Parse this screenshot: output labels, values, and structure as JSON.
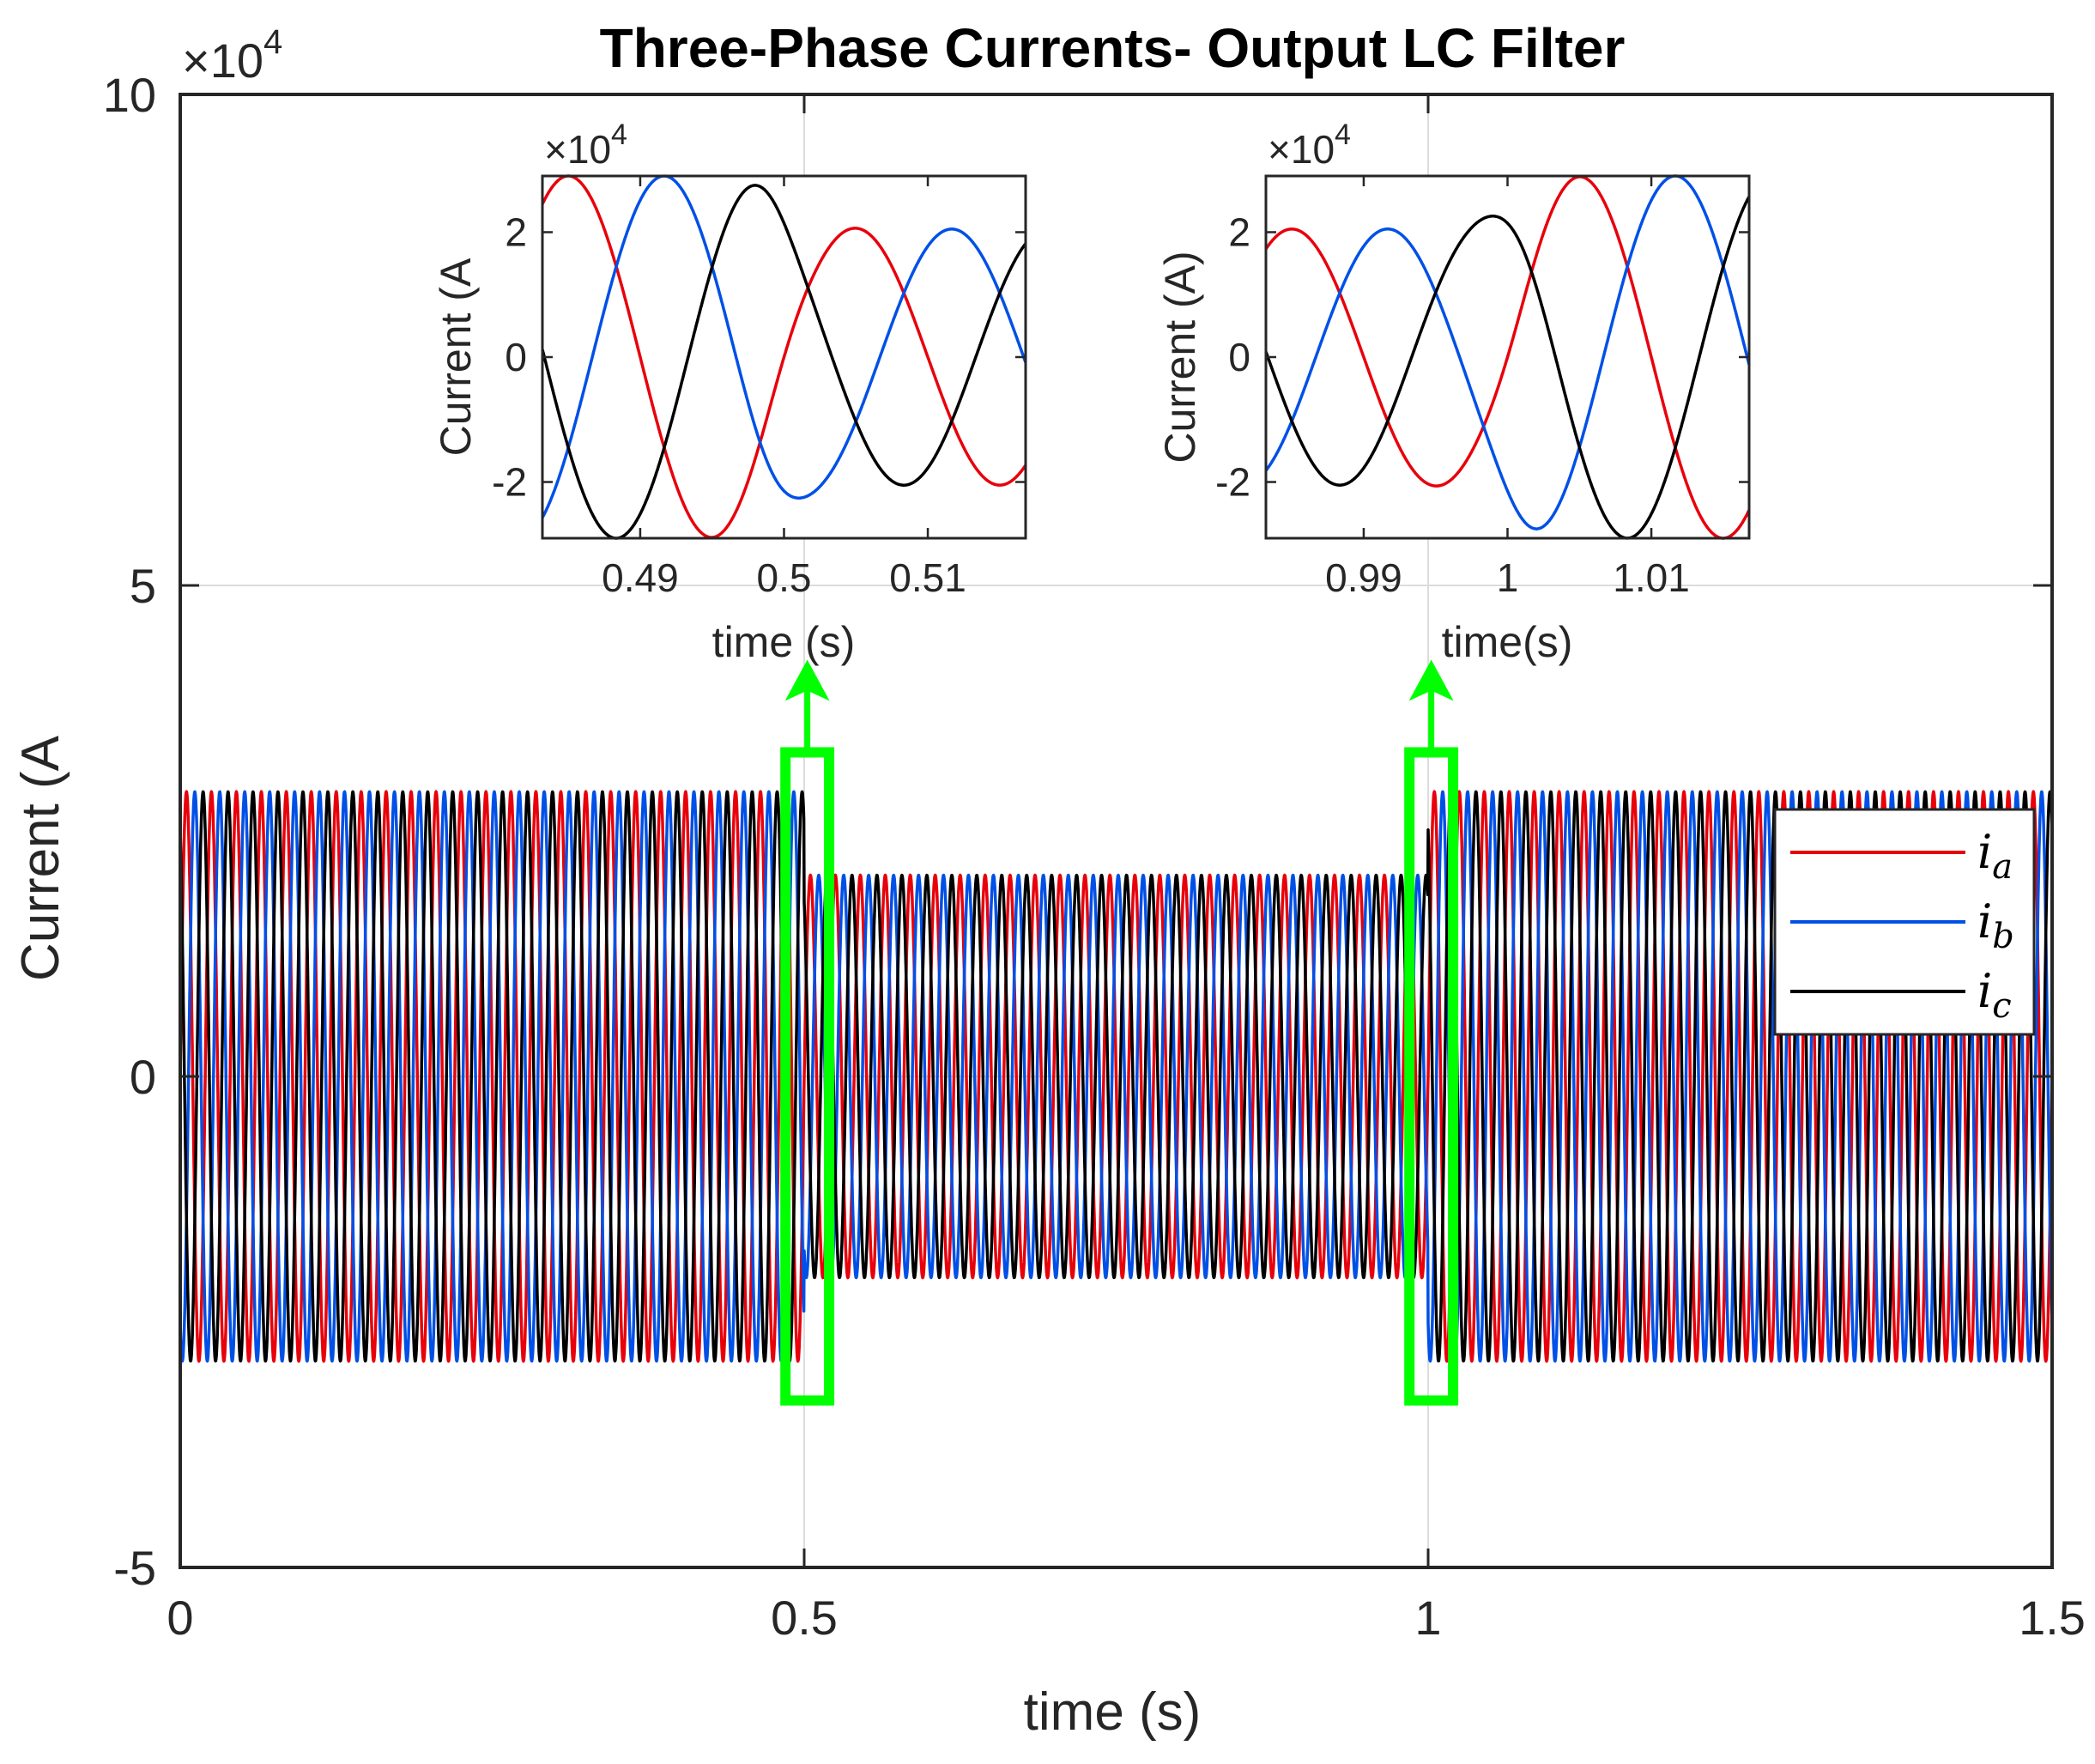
{
  "chart_data": [
    {
      "type": "line",
      "title": "Three-Phase Currents- Output LC Filter",
      "xlabel": "time (s)",
      "ylabel": "Current (A",
      "exponent_label": "×10",
      "exponent_power": "4",
      "xlim": [
        0,
        1.5
      ],
      "ylim": [
        -5,
        10
      ],
      "xticks": [
        0,
        0.5,
        1,
        1.5
      ],
      "xtick_labels": [
        "0",
        "0.5",
        "1",
        "1.5"
      ],
      "yticks": [
        -5,
        0,
        5,
        10
      ],
      "ytick_labels": [
        "-5",
        "0",
        "5",
        "10"
      ],
      "grid": true,
      "legend_position": "right",
      "legend": [
        {
          "base": "i",
          "sub": "a",
          "color": "#e8000b"
        },
        {
          "base": "i",
          "sub": "b",
          "color": "#0050e6"
        },
        {
          "base": "i",
          "sub": "c",
          "color": "#000000"
        }
      ],
      "frequency_hz": 50,
      "series": [
        {
          "name": "i_a",
          "phase_deg": 0,
          "color": "#e8000b"
        },
        {
          "name": "i_b",
          "phase_deg": -120,
          "color": "#0050e6"
        },
        {
          "name": "i_c",
          "phase_deg": 120,
          "color": "#000000"
        }
      ],
      "amplitude_segments": [
        {
          "t_start": 0,
          "t_end": 0.5,
          "amplitude": 2.9
        },
        {
          "t_start": 0.5,
          "t_end": 1.0,
          "amplitude": 2.05
        },
        {
          "t_start": 1.0,
          "t_end": 1.5,
          "amplitude": 2.9
        }
      ],
      "highlight_boxes": [
        {
          "t_start": 0.485,
          "t_end": 0.52,
          "y_min": -3.3,
          "y_max": 3.3,
          "color": "#00ff00"
        },
        {
          "t_start": 0.985,
          "t_end": 1.02,
          "y_min": -3.3,
          "y_max": 3.3,
          "color": "#00ff00"
        }
      ]
    },
    {
      "type": "line",
      "title": "",
      "xlabel": "time (s)",
      "ylabel": "Current (A",
      "exponent_label": "×10",
      "exponent_power": "4",
      "xlim": [
        0.4832,
        0.5168
      ],
      "ylim": [
        -2.9,
        2.9
      ],
      "xticks": [
        0.49,
        0.5,
        0.51
      ],
      "xtick_labels": [
        "0.49",
        "0.5",
        "0.51"
      ],
      "yticks": [
        -2,
        0,
        2
      ],
      "ytick_labels": [
        "-2",
        "0",
        "2"
      ],
      "transition_time": 0.5,
      "amplitude_before": 2.9,
      "amplitude_after": 2.05
    },
    {
      "type": "line",
      "title": "",
      "xlabel": "time(s)",
      "ylabel": "Current (A)",
      "exponent_label": "×10",
      "exponent_power": "4",
      "xlim": [
        0.9832,
        1.0168
      ],
      "ylim": [
        -2.9,
        2.9
      ],
      "xticks": [
        0.99,
        1,
        1.01
      ],
      "xtick_labels": [
        "0.99",
        "1",
        "1.01"
      ],
      "yticks": [
        -2,
        0,
        2
      ],
      "ytick_labels": [
        "-2",
        "0",
        "2"
      ],
      "transition_time": 1.0,
      "amplitude_before": 2.05,
      "amplitude_after": 2.9
    }
  ],
  "colors": {
    "phase_a": "#e8000b",
    "phase_b": "#0050e6",
    "phase_c": "#000000",
    "highlight": "#00ff00",
    "grid": "#dcdcdc",
    "axes": "#262626"
  }
}
